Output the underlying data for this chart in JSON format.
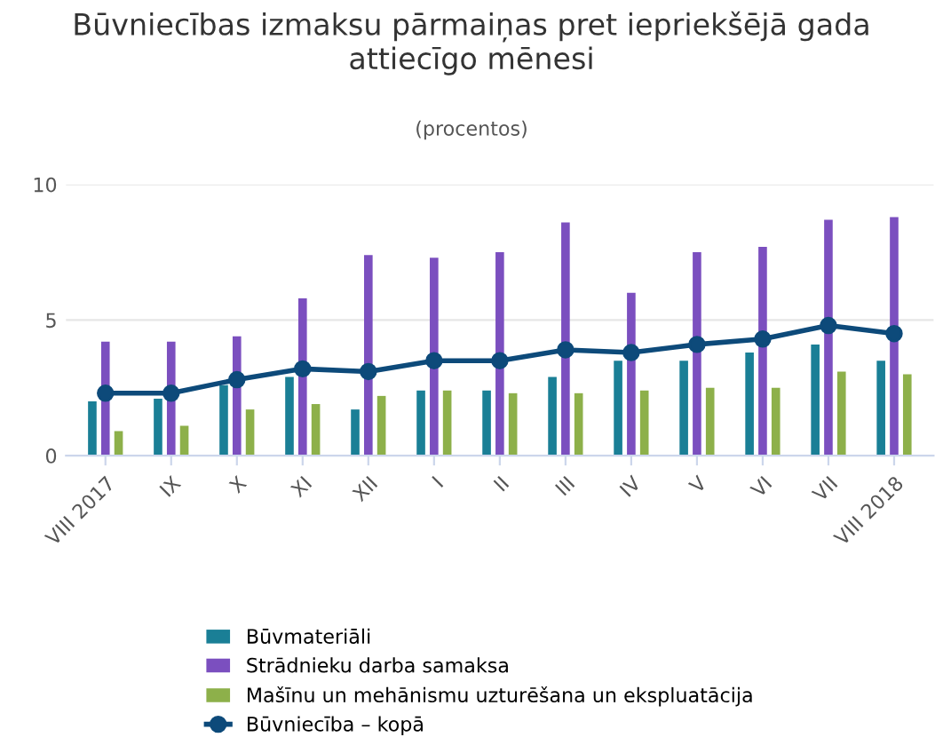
{
  "chart_data": {
    "type": "bar",
    "title": "Būvniecības izmaksu pārmaiņas pret iepriekšējā gada\nattiecīgo mēnesi",
    "subtitle": "(procentos)",
    "categories": [
      "VIII 2017",
      "IX",
      "X",
      "XI",
      "XII",
      "I",
      "II",
      "III",
      "IV",
      "V",
      "VI",
      "VII",
      "VIII 2018"
    ],
    "series": [
      {
        "name": "Būvmateriāli",
        "color": "#1a7f96",
        "values": [
          2.0,
          2.1,
          2.6,
          2.9,
          1.7,
          2.4,
          2.4,
          2.9,
          3.5,
          3.5,
          3.8,
          4.1,
          3.5
        ]
      },
      {
        "name": "Strādnieku darba samaksa",
        "color": "#7b4fbf",
        "values": [
          4.2,
          4.2,
          4.4,
          5.8,
          7.4,
          7.3,
          7.5,
          8.6,
          6.0,
          7.5,
          7.7,
          8.7,
          8.8
        ]
      },
      {
        "name": "Mašīnu un mehānismu uzturēšana un ekspluatācija",
        "color": "#8db04a",
        "values": [
          0.9,
          1.1,
          1.7,
          1.9,
          2.2,
          2.4,
          2.3,
          2.3,
          2.4,
          2.5,
          2.5,
          3.1,
          3.0
        ]
      },
      {
        "name": "Būvniecība – kopā",
        "color": "#0d4a7a",
        "type": "line",
        "marker": "circle",
        "values": [
          2.3,
          2.3,
          2.8,
          3.2,
          3.1,
          3.5,
          3.5,
          3.9,
          3.8,
          4.1,
          4.3,
          4.8,
          4.5
        ]
      }
    ],
    "ylim": [
      0,
      10
    ],
    "yticks": [
      0,
      5,
      10
    ],
    "grid": "y",
    "legend": "bottom"
  }
}
